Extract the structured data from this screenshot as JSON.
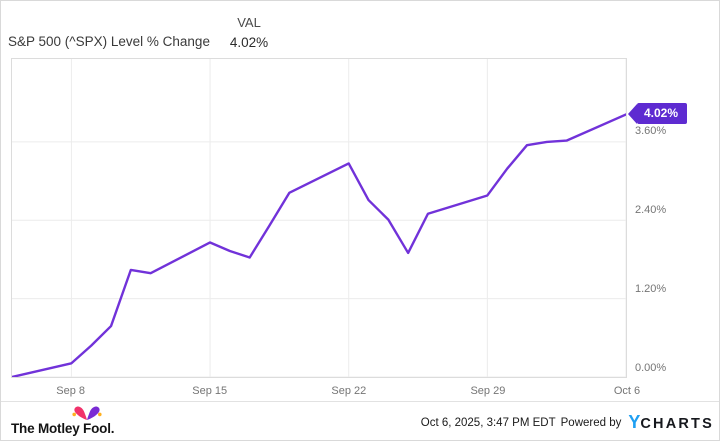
{
  "header": {
    "title": "S&P 500 (^SPX) Level % Change",
    "val_label": "VAL",
    "val_value": "4.02%"
  },
  "chart_data": {
    "type": "line",
    "title": "S&P 500 (^SPX) Level % Change",
    "grid": true,
    "legend_position": "none",
    "xlim_days": [
      0,
      31
    ],
    "ylim": [
      0,
      4.87
    ],
    "x_ticks": [
      {
        "day": 3,
        "label": "Sep 8"
      },
      {
        "day": 10,
        "label": "Sep 15"
      },
      {
        "day": 17,
        "label": "Sep 22"
      },
      {
        "day": 24,
        "label": "Sep 29"
      },
      {
        "day": 31,
        "label": "Oct 6"
      }
    ],
    "y_ticks": [
      {
        "value": 0.0,
        "label": "0.00%"
      },
      {
        "value": 1.2,
        "label": "1.20%"
      },
      {
        "value": 2.4,
        "label": "2.40%"
      },
      {
        "value": 3.6,
        "label": "3.60%"
      }
    ],
    "series": [
      {
        "name": "S&P 500 (^SPX) Level % Change",
        "color": "#7132d9",
        "points": [
          {
            "date": "Sep 5",
            "day": 0,
            "value": 0.0
          },
          {
            "date": "Sep 8",
            "day": 3,
            "value": 0.21
          },
          {
            "date": "Sep 9",
            "day": 4,
            "value": 0.48
          },
          {
            "date": "Sep 10",
            "day": 5,
            "value": 0.78
          },
          {
            "date": "Sep 11",
            "day": 6,
            "value": 1.64
          },
          {
            "date": "Sep 12",
            "day": 7,
            "value": 1.59
          },
          {
            "date": "Sep 15",
            "day": 10,
            "value": 2.06
          },
          {
            "date": "Sep 16",
            "day": 11,
            "value": 1.93
          },
          {
            "date": "Sep 17",
            "day": 12,
            "value": 1.83
          },
          {
            "date": "Sep 18",
            "day": 13,
            "value": 2.32
          },
          {
            "date": "Sep 19",
            "day": 14,
            "value": 2.82
          },
          {
            "date": "Sep 22",
            "day": 17,
            "value": 3.27
          },
          {
            "date": "Sep 23",
            "day": 18,
            "value": 2.71
          },
          {
            "date": "Sep 24",
            "day": 19,
            "value": 2.41
          },
          {
            "date": "Sep 25",
            "day": 20,
            "value": 1.9
          },
          {
            "date": "Sep 26",
            "day": 21,
            "value": 2.5
          },
          {
            "date": "Sep 29",
            "day": 24,
            "value": 2.78
          },
          {
            "date": "Sep 30",
            "day": 25,
            "value": 3.19
          },
          {
            "date": "Oct 1",
            "day": 26,
            "value": 3.55
          },
          {
            "date": "Oct 2",
            "day": 27,
            "value": 3.6
          },
          {
            "date": "Oct 3",
            "day": 28,
            "value": 3.62
          },
          {
            "date": "Oct 6",
            "day": 31,
            "value": 4.02
          }
        ]
      }
    ],
    "end_label": {
      "text": "4.02%",
      "value": 4.02,
      "color": "#5e2bd1"
    }
  },
  "footer": {
    "brand": "The Motley Fool.",
    "timestamp": "Oct 6, 2025, 3:47 PM EDT",
    "powered_by": "Powered by",
    "ycharts_y": "Y",
    "ycharts_rest": "CHARTS",
    "colors": {
      "ycharts_blue": "#1e9ff2",
      "fool_pink": "#f1326b",
      "fool_purple": "#7a2bd4",
      "fool_gold": "#ffb01f"
    }
  }
}
